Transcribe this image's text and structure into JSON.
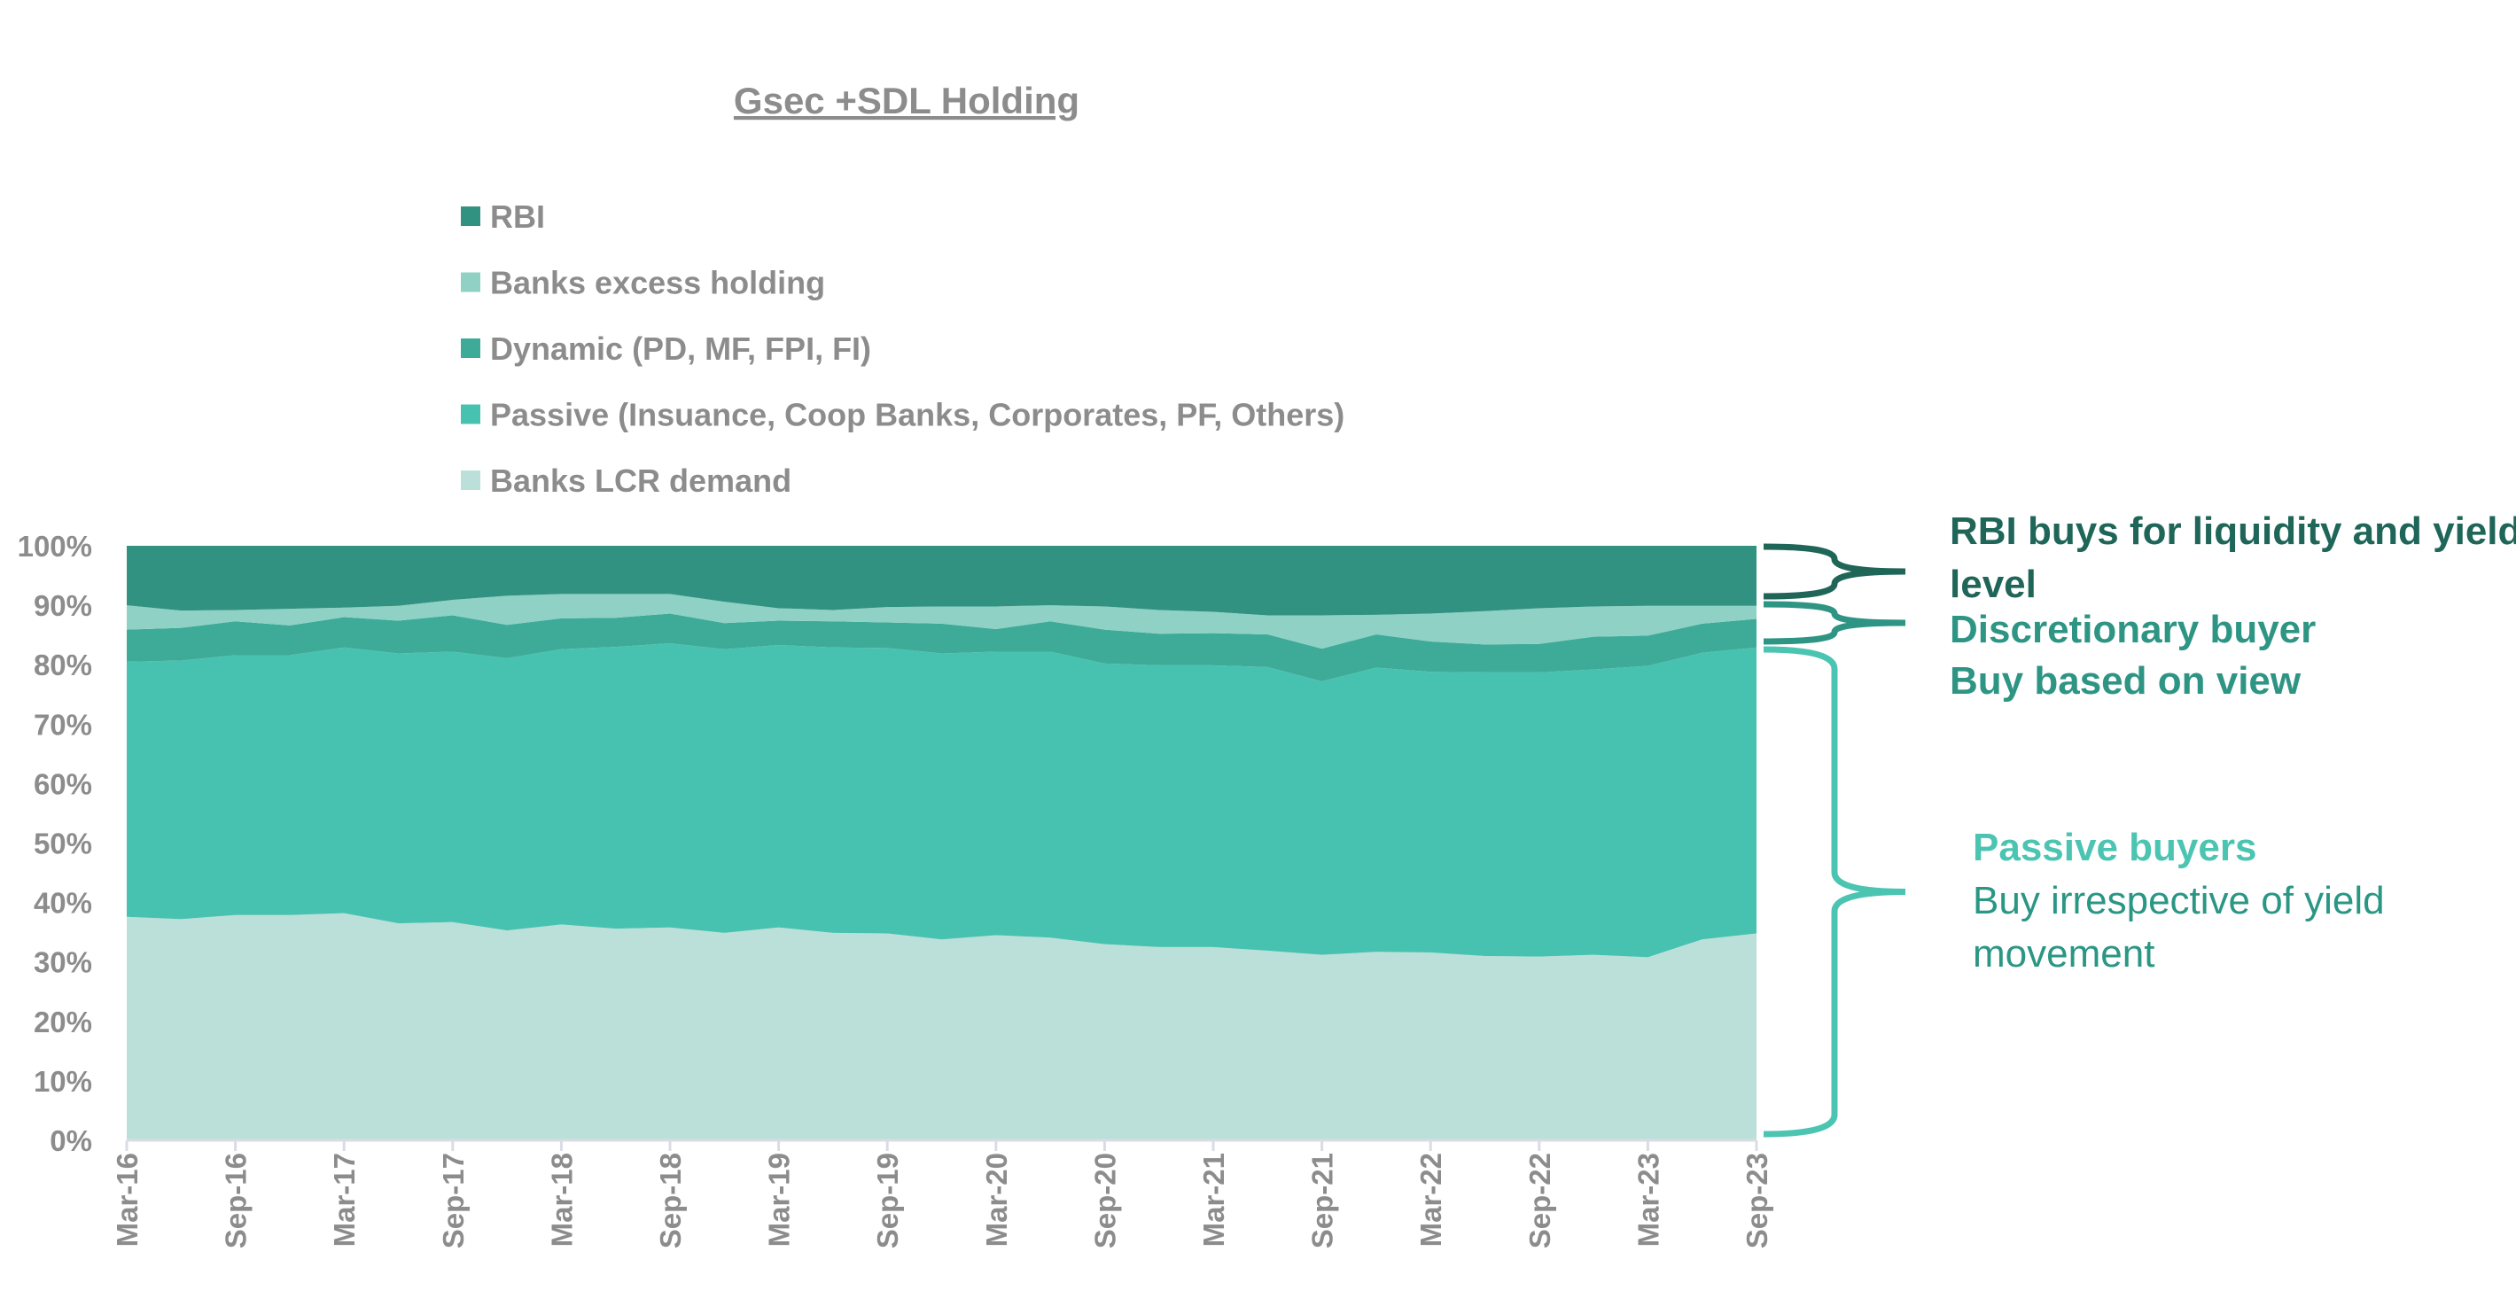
{
  "chart_data": {
    "type": "area",
    "stacked": "percent",
    "title": "Gsec +SDL Holding",
    "xlabel": "",
    "ylabel": "",
    "ylim": [
      0,
      100
    ],
    "y_ticks": [
      "0%",
      "10%",
      "20%",
      "30%",
      "40%",
      "50%",
      "60%",
      "70%",
      "80%",
      "90%",
      "100%"
    ],
    "x_tick_labels": [
      "Mar-16",
      "Sep-16",
      "Mar-17",
      "Sep-17",
      "Mar-18",
      "Sep-18",
      "Mar-19",
      "Sep-19",
      "Mar-20",
      "Sep-20",
      "Mar-21",
      "Sep-21",
      "Mar-22",
      "Sep-22",
      "Mar-23",
      "Sep-23"
    ],
    "x_points": 31,
    "x_frequency": "quarterly",
    "legend_placement": "top-left",
    "series": [
      {
        "name": "Banks LCR demand",
        "color": "#bbe0d9",
        "values": [
          37.6,
          37.2,
          37.9,
          37.9,
          38.2,
          36.5,
          36.7,
          35.3,
          36.3,
          35.6,
          35.8,
          34.9,
          35.8,
          34.9,
          34.8,
          33.8,
          34.5,
          34.1,
          33.0,
          32.5,
          32.5,
          31.9,
          31.2,
          31.7,
          31.6,
          31.0,
          30.9,
          31.2,
          30.8,
          33.8,
          34.8
        ]
      },
      {
        "name": "Passive (Insuance, Coop Banks, Corporates, PF, Others)",
        "color": "#48c2b0",
        "values": [
          42.9,
          43.5,
          43.7,
          43.7,
          44.7,
          45.4,
          45.5,
          45.8,
          46.3,
          47.4,
          47.8,
          47.7,
          47.5,
          48.0,
          48.0,
          48.1,
          47.7,
          48.1,
          47.2,
          47.4,
          47.4,
          47.7,
          46.0,
          47.8,
          47.2,
          47.7,
          47.8,
          48.0,
          49.0,
          48.2,
          48.1
        ]
      },
      {
        "name": "Dynamic (PD, MF, FPI, FI)",
        "color": "#3eab98",
        "values": [
          5.4,
          5.5,
          5.7,
          5.0,
          5.1,
          5.5,
          6.1,
          5.6,
          5.2,
          4.9,
          5.0,
          4.4,
          4.1,
          4.4,
          4.3,
          5.0,
          3.8,
          5.1,
          5.7,
          5.3,
          5.4,
          5.5,
          5.5,
          5.6,
          5.1,
          4.7,
          4.8,
          5.5,
          5.1,
          4.9,
          4.8
        ]
      },
      {
        "name": "Banks excess holding",
        "color": "#8fd1c4",
        "values": [
          4.1,
          2.9,
          1.9,
          2.8,
          1.6,
          2.5,
          2.6,
          4.9,
          4.1,
          4.0,
          3.3,
          3.6,
          2.1,
          1.9,
          2.6,
          2.9,
          3.8,
          2.7,
          3.9,
          4.0,
          3.6,
          3.2,
          5.6,
          3.3,
          4.7,
          5.6,
          6.0,
          5.1,
          5.0,
          3.0,
          2.2
        ]
      },
      {
        "name": "RBI",
        "color": "#319282",
        "values": [
          10.0,
          10.9,
          10.8,
          10.6,
          10.4,
          10.1,
          9.1,
          8.4,
          8.1,
          8.1,
          8.1,
          9.4,
          10.5,
          10.8,
          10.3,
          10.2,
          10.2,
          10.0,
          10.2,
          10.8,
          11.1,
          11.7,
          11.7,
          11.6,
          11.4,
          11.0,
          10.5,
          10.2,
          10.1,
          10.1,
          10.1
        ]
      }
    ],
    "legend_order": [
      "RBI",
      "Banks excess holding",
      "Dynamic (PD, MF, FPI, FI)",
      "Passive (Insuance, Coop Banks, Corporates, PF, Others)",
      "Banks LCR demand"
    ],
    "annotations": [
      {
        "lines": [
          "RBI buys for liquidity and yield",
          "level"
        ],
        "color": "#1f6659",
        "bold": [
          true,
          true
        ],
        "range": [
          90,
          100
        ]
      },
      {
        "lines": [
          "Discretionary buyer",
          "Buy based on view"
        ],
        "color": "#2e9584",
        "bold": [
          true,
          true
        ],
        "range": [
          83,
          90
        ]
      },
      {
        "lines": [
          "Passive buyers",
          "Buy irrespective of yield",
          "movement"
        ],
        "color": "#4cc4b2",
        "sub_color": "#2a9684",
        "bold": [
          true,
          false,
          false
        ],
        "range": [
          0,
          83
        ]
      }
    ]
  }
}
